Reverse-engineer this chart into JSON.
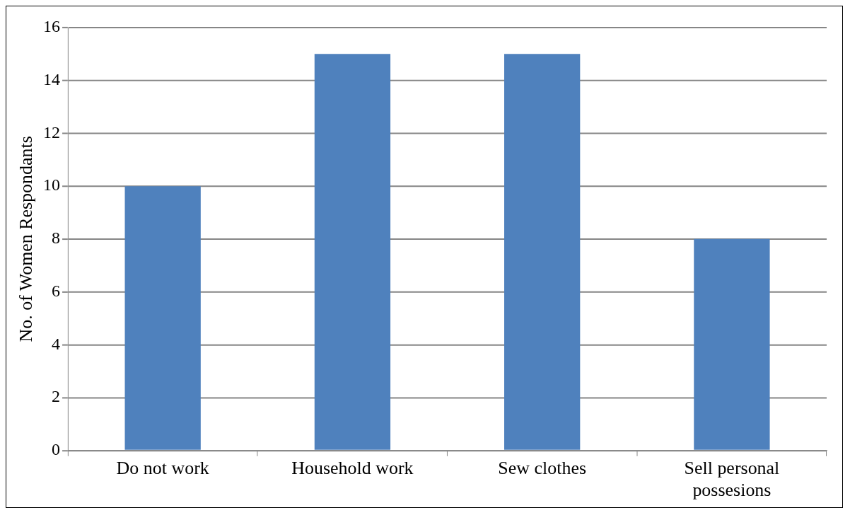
{
  "chart_data": {
    "type": "bar",
    "ylabel": "No. of Women Respondants",
    "categories": [
      "Do not work",
      "Household work",
      "Sew clothes",
      "Sell personal possesions"
    ],
    "values": [
      10,
      15,
      15,
      8
    ],
    "color": "#4f81bd",
    "ylim": [
      0,
      16
    ],
    "yticks": [
      0,
      2,
      4,
      6,
      8,
      10,
      12,
      14,
      16
    ],
    "grid": "y",
    "legend": false
  }
}
